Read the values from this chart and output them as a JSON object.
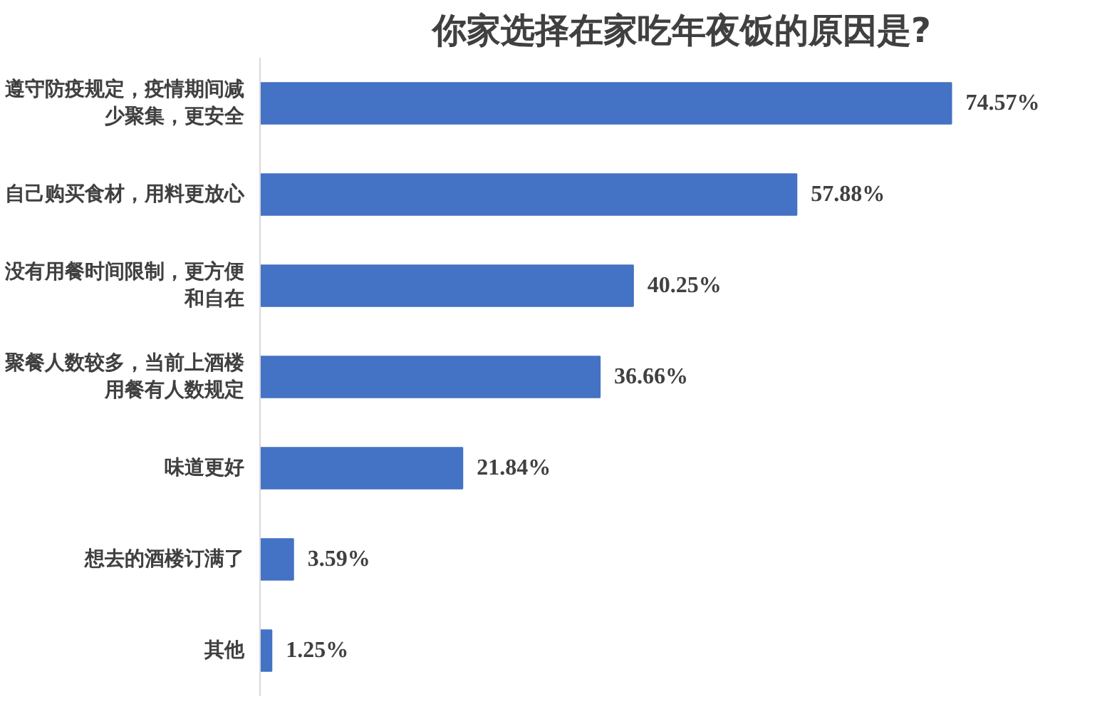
{
  "chart_data": {
    "type": "bar",
    "orientation": "horizontal",
    "title": "你家选择在家吃年夜饭的原因是?",
    "categories": [
      "遵守防疫规定，疫情期间减少聚集，更安全",
      "自己购买食材，用料更放心",
      "没有用餐时间限制，更方便和自在",
      "聚餐人数较多，当前上酒楼用餐有人数规定",
      "味道更好",
      "想去的酒楼订满了",
      "其他"
    ],
    "values": [
      74.57,
      57.88,
      40.25,
      36.66,
      21.84,
      3.59,
      1.25
    ],
    "value_labels": [
      "74.57%",
      "57.88%",
      "40.25%",
      "36.66%",
      "21.84%",
      "3.59%",
      "1.25%"
    ],
    "color": "#4472c4",
    "grid": false
  }
}
